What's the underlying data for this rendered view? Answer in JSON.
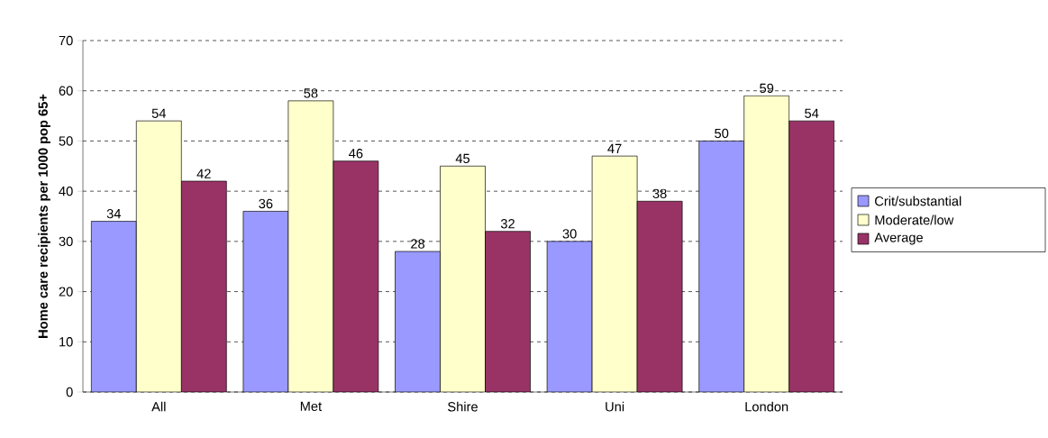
{
  "chart_data": {
    "type": "bar",
    "ylabel": "Home care recipients per 1000 pop 65+",
    "categories": [
      "All",
      "Met",
      "Shire",
      "Uni",
      "London"
    ],
    "series": [
      {
        "name": "Crit/substantial",
        "color": "#9999ff",
        "values": [
          34,
          36,
          28,
          30,
          50
        ]
      },
      {
        "name": "Moderate/low",
        "color": "#ffffcc",
        "values": [
          54,
          58,
          45,
          47,
          59
        ]
      },
      {
        "name": "Average",
        "color": "#993366",
        "values": [
          42,
          46,
          32,
          38,
          54
        ]
      }
    ],
    "ylim": [
      0,
      70
    ],
    "yticks": [
      0,
      10,
      20,
      30,
      40,
      50,
      60,
      70
    ],
    "grid": "y",
    "legend": "right",
    "data_labels": true
  }
}
